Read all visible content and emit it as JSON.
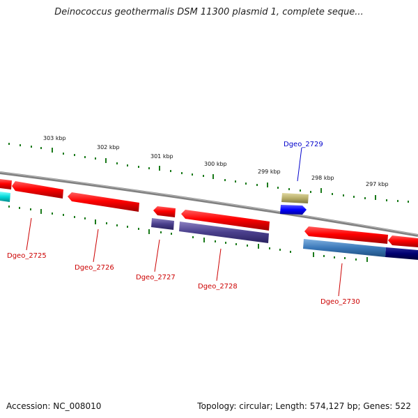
{
  "title": "Deinococcus geothermalis DSM 11300 plasmid 1, complete seque...",
  "footer": {
    "accession": "Accession: NC_008010",
    "summary": "Topology: circular; Length: 574,127 bp; Genes: 522"
  },
  "scale_labels": [
    "303 kbp",
    "302 kbp",
    "301 kbp",
    "300 kbp",
    "299 kbp",
    "298 kbp",
    "297 kbp"
  ],
  "genes": [
    {
      "label": "Dgeo_2725",
      "color": "#cc0000"
    },
    {
      "label": "Dgeo_2726",
      "color": "#cc0000"
    },
    {
      "label": "Dgeo_2727",
      "color": "#cc0000"
    },
    {
      "label": "Dgeo_2728",
      "color": "#cc0000"
    },
    {
      "label": "Dgeo_2729",
      "color": "#0000cc"
    },
    {
      "label": "Dgeo_2730",
      "color": "#cc0000"
    }
  ]
}
